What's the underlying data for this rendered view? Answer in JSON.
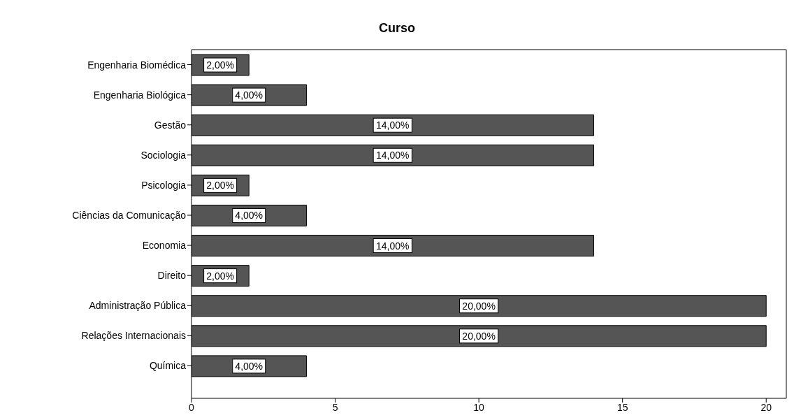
{
  "chart_data": {
    "type": "bar",
    "orientation": "horizontal",
    "title": "Curso",
    "categories": [
      "Engenharia Biomédica",
      "Engenharia Biológica",
      "Gestão",
      "Sociologia",
      "Psicologia",
      "Ciências da Comunicação",
      "Economia",
      "Direito",
      "Administração Pública",
      "Relações Internacionais",
      "Química"
    ],
    "values": [
      2,
      4,
      14,
      14,
      2,
      4,
      14,
      2,
      20,
      20,
      4
    ],
    "value_labels": [
      "2,00%",
      "4,00%",
      "14,00%",
      "14,00%",
      "2,00%",
      "4,00%",
      "14,00%",
      "2,00%",
      "20,00%",
      "20,00%",
      "4,00%"
    ],
    "color": "#555555",
    "xlim": [
      0,
      20.7
    ],
    "xticks": [
      0,
      5,
      10,
      15,
      20
    ],
    "grid": false
  }
}
